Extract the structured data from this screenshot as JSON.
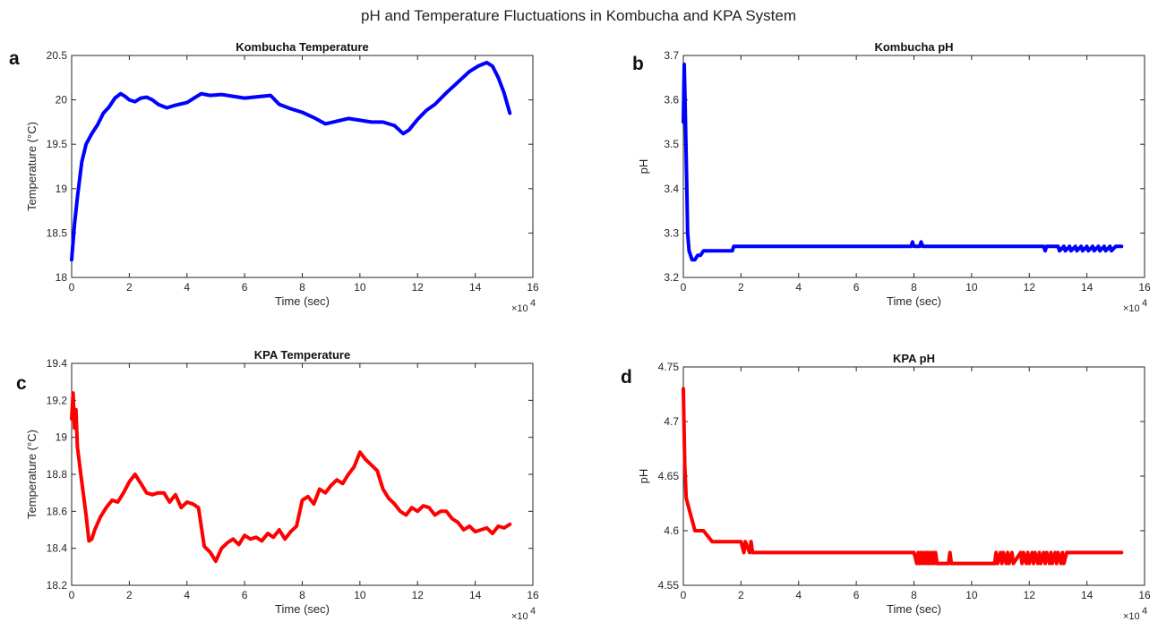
{
  "figure": {
    "suptitle": "pH and Temperature Fluctuations in Kombucha and KPA System"
  },
  "chart_data": [
    {
      "panel": "a",
      "type": "line",
      "title": "Kombucha Temperature",
      "xlabel": "Time (sec)",
      "ylabel": "Temperature (°C)",
      "x_multiplier": "×10",
      "x_multiplier_exp": "4",
      "xlim": [
        0,
        16
      ],
      "ylim": [
        18,
        20.5
      ],
      "xticks": [
        0,
        2,
        4,
        6,
        8,
        10,
        12,
        14,
        16
      ],
      "xtick_labels": [
        "0",
        "2",
        "4",
        "6",
        "8",
        "10",
        "12",
        "14",
        "16"
      ],
      "yticks": [
        18,
        18.5,
        19,
        19.5,
        20,
        20.5
      ],
      "ytick_labels": [
        "18",
        "18.5",
        "19",
        "19.5",
        "20",
        "20.5"
      ],
      "color": "#0000ff",
      "series": [
        {
          "x": [
            0,
            0.1,
            0.2,
            0.35,
            0.5,
            0.7,
            0.9,
            1.1,
            1.3,
            1.5,
            1.7,
            1.85,
            2.0,
            2.2,
            2.4,
            2.6,
            2.8,
            3.0,
            3.3,
            3.6,
            4.0,
            4.3,
            4.5,
            4.8,
            5.2,
            5.6,
            6.0,
            6.3,
            6.6,
            6.9,
            7.2,
            7.6,
            8.0,
            8.4,
            8.8,
            9.2,
            9.6,
            10.0,
            10.4,
            10.8,
            11.2,
            11.5,
            11.7,
            12.0,
            12.3,
            12.6,
            13.0,
            13.4,
            13.8,
            14.1,
            14.4,
            14.6,
            14.8,
            15.0,
            15.2
          ],
          "y": [
            18.2,
            18.6,
            18.9,
            19.3,
            19.5,
            19.62,
            19.72,
            19.85,
            19.92,
            20.02,
            20.07,
            20.04,
            20.0,
            19.98,
            20.02,
            20.03,
            20.0,
            19.95,
            19.91,
            19.94,
            19.97,
            20.03,
            20.07,
            20.05,
            20.06,
            20.04,
            20.02,
            20.03,
            20.04,
            20.05,
            19.95,
            19.9,
            19.86,
            19.8,
            19.73,
            19.76,
            19.79,
            19.77,
            19.75,
            19.75,
            19.71,
            19.62,
            19.66,
            19.78,
            19.88,
            19.95,
            20.08,
            20.2,
            20.32,
            20.38,
            20.42,
            20.38,
            20.25,
            20.08,
            19.85
          ]
        }
      ]
    },
    {
      "panel": "b",
      "type": "line",
      "title": "Kombucha pH",
      "xlabel": "Time (sec)",
      "ylabel": "pH",
      "x_multiplier": "×10",
      "x_multiplier_exp": "4",
      "xlim": [
        0,
        16
      ],
      "ylim": [
        3.2,
        3.7
      ],
      "xticks": [
        0,
        2,
        4,
        6,
        8,
        10,
        12,
        14,
        16
      ],
      "xtick_labels": [
        "0",
        "2",
        "4",
        "6",
        "8",
        "10",
        "12",
        "14",
        "16"
      ],
      "yticks": [
        3.2,
        3.3,
        3.4,
        3.5,
        3.6,
        3.7
      ],
      "ytick_labels": [
        "3.2",
        "3.3",
        "3.4",
        "3.5",
        "3.6",
        "3.7"
      ],
      "color": "#0000ff",
      "series": [
        {
          "x": [
            0,
            0.03,
            0.06,
            0.09,
            0.12,
            0.15,
            0.2,
            0.3,
            0.4,
            0.5,
            0.6,
            0.7,
            0.75,
            1.0,
            1.5,
            1.7,
            1.75,
            2.5,
            5.0,
            7.9,
            7.95,
            8.0,
            8.05,
            8.2,
            8.25,
            8.3,
            10.0,
            12.5,
            12.55,
            12.6,
            13.0,
            13.05,
            13.2,
            13.25,
            13.4,
            13.45,
            13.6,
            13.65,
            13.8,
            13.85,
            14.0,
            14.05,
            14.2,
            14.25,
            14.4,
            14.45,
            14.6,
            14.65,
            14.8,
            14.85,
            15.0,
            15.2
          ],
          "y": [
            3.55,
            3.68,
            3.6,
            3.5,
            3.4,
            3.3,
            3.26,
            3.24,
            3.24,
            3.25,
            3.25,
            3.26,
            3.26,
            3.26,
            3.26,
            3.26,
            3.27,
            3.27,
            3.27,
            3.27,
            3.28,
            3.27,
            3.27,
            3.27,
            3.28,
            3.27,
            3.27,
            3.27,
            3.26,
            3.27,
            3.27,
            3.26,
            3.27,
            3.26,
            3.27,
            3.26,
            3.27,
            3.26,
            3.27,
            3.26,
            3.27,
            3.26,
            3.27,
            3.26,
            3.27,
            3.26,
            3.27,
            3.26,
            3.27,
            3.26,
            3.27,
            3.27
          ]
        }
      ]
    },
    {
      "panel": "c",
      "type": "line",
      "title": "KPA Temperature",
      "xlabel": "Time (sec)",
      "ylabel": "Temperature (°C)",
      "x_multiplier": "×10",
      "x_multiplier_exp": "4",
      "xlim": [
        0,
        16
      ],
      "ylim": [
        18.2,
        19.4
      ],
      "xticks": [
        0,
        2,
        4,
        6,
        8,
        10,
        12,
        14,
        16
      ],
      "xtick_labels": [
        "0",
        "2",
        "4",
        "6",
        "8",
        "10",
        "12",
        "14",
        "16"
      ],
      "yticks": [
        18.2,
        18.4,
        18.6,
        18.8,
        19,
        19.2,
        19.4
      ],
      "ytick_labels": [
        "18.2",
        "18.4",
        "18.6",
        "18.8",
        "19",
        "19.2",
        "19.4"
      ],
      "color": "#ff0000",
      "series": [
        {
          "x": [
            0,
            0.05,
            0.1,
            0.15,
            0.2,
            0.3,
            0.4,
            0.5,
            0.6,
            0.7,
            0.8,
            1.0,
            1.2,
            1.4,
            1.6,
            1.8,
            2.0,
            2.2,
            2.4,
            2.6,
            2.8,
            3.0,
            3.2,
            3.4,
            3.6,
            3.8,
            4.0,
            4.2,
            4.4,
            4.6,
            4.8,
            5.0,
            5.2,
            5.4,
            5.6,
            5.8,
            6.0,
            6.2,
            6.4,
            6.6,
            6.8,
            7.0,
            7.2,
            7.4,
            7.6,
            7.8,
            8.0,
            8.2,
            8.4,
            8.6,
            8.8,
            9.0,
            9.2,
            9.4,
            9.6,
            9.8,
            10.0,
            10.2,
            10.4,
            10.6,
            10.8,
            11.0,
            11.2,
            11.4,
            11.6,
            11.8,
            12.0,
            12.2,
            12.4,
            12.6,
            12.8,
            13.0,
            13.2,
            13.4,
            13.6,
            13.8,
            14.0,
            14.2,
            14.4,
            14.6,
            14.8,
            15.0,
            15.2
          ],
          "y": [
            19.1,
            19.24,
            19.05,
            19.15,
            18.95,
            18.82,
            18.7,
            18.58,
            18.44,
            18.45,
            18.5,
            18.57,
            18.62,
            18.66,
            18.65,
            18.7,
            18.76,
            18.8,
            18.75,
            18.7,
            18.69,
            18.7,
            18.7,
            18.65,
            18.69,
            18.62,
            18.65,
            18.64,
            18.62,
            18.41,
            18.38,
            18.33,
            18.4,
            18.43,
            18.45,
            18.42,
            18.47,
            18.45,
            18.46,
            18.44,
            18.48,
            18.46,
            18.5,
            18.45,
            18.49,
            18.52,
            18.66,
            18.68,
            18.64,
            18.72,
            18.7,
            18.74,
            18.77,
            18.75,
            18.8,
            18.84,
            18.92,
            18.88,
            18.85,
            18.82,
            18.72,
            18.67,
            18.64,
            18.6,
            18.58,
            18.62,
            18.6,
            18.63,
            18.62,
            18.58,
            18.6,
            18.6,
            18.56,
            18.54,
            18.5,
            18.52,
            18.49,
            18.5,
            18.51,
            18.48,
            18.52,
            18.51,
            18.53
          ]
        }
      ]
    },
    {
      "panel": "d",
      "type": "line",
      "title": "KPA pH",
      "xlabel": "Time (sec)",
      "ylabel": "pH",
      "x_multiplier": "×10",
      "x_multiplier_exp": "4",
      "xlim": [
        0,
        16
      ],
      "ylim": [
        4.55,
        4.75
      ],
      "xticks": [
        0,
        2,
        4,
        6,
        8,
        10,
        12,
        14,
        16
      ],
      "xtick_labels": [
        "0",
        "2",
        "4",
        "6",
        "8",
        "10",
        "12",
        "14",
        "16"
      ],
      "yticks": [
        4.55,
        4.6,
        4.65,
        4.7,
        4.75
      ],
      "ytick_labels": [
        "4.55",
        "4.6",
        "4.65",
        "4.7",
        "4.75"
      ],
      "color": "#ff0000",
      "series": [
        {
          "x": [
            0,
            0.05,
            0.1,
            0.2,
            0.3,
            0.4,
            0.5,
            0.6,
            0.7,
            1.0,
            1.2,
            1.5,
            2.0,
            2.1,
            2.15,
            2.3,
            2.35,
            2.4,
            2.45,
            5.0,
            8.0,
            8.1,
            8.15,
            8.2,
            8.25,
            8.3,
            8.35,
            8.4,
            8.45,
            8.5,
            8.55,
            8.6,
            8.65,
            8.7,
            8.75,
            8.8,
            8.85,
            9.0,
            9.2,
            9.25,
            9.3,
            9.35,
            10.8,
            10.85,
            10.9,
            11.0,
            11.05,
            11.1,
            11.2,
            11.25,
            11.3,
            11.4,
            11.45,
            11.7,
            11.75,
            11.8,
            11.9,
            11.95,
            12.0,
            12.1,
            12.15,
            12.2,
            12.3,
            12.35,
            12.4,
            12.5,
            12.55,
            12.6,
            12.7,
            12.75,
            12.8,
            12.9,
            12.95,
            13.0,
            13.1,
            13.15,
            13.2,
            13.3,
            13.35,
            15.2
          ],
          "y": [
            4.73,
            4.66,
            4.63,
            4.62,
            4.61,
            4.6,
            4.6,
            4.6,
            4.6,
            4.59,
            4.59,
            4.59,
            4.59,
            4.58,
            4.59,
            4.58,
            4.59,
            4.58,
            4.58,
            4.58,
            4.58,
            4.57,
            4.58,
            4.57,
            4.58,
            4.57,
            4.58,
            4.57,
            4.58,
            4.57,
            4.58,
            4.57,
            4.58,
            4.57,
            4.58,
            4.57,
            4.57,
            4.57,
            4.57,
            4.58,
            4.57,
            4.57,
            4.57,
            4.58,
            4.57,
            4.58,
            4.57,
            4.58,
            4.57,
            4.58,
            4.57,
            4.58,
            4.57,
            4.58,
            4.57,
            4.58,
            4.57,
            4.58,
            4.57,
            4.58,
            4.57,
            4.58,
            4.57,
            4.58,
            4.57,
            4.58,
            4.57,
            4.58,
            4.57,
            4.58,
            4.57,
            4.58,
            4.57,
            4.58,
            4.57,
            4.58,
            4.57,
            4.58,
            4.58,
            4.58
          ]
        }
      ]
    }
  ]
}
